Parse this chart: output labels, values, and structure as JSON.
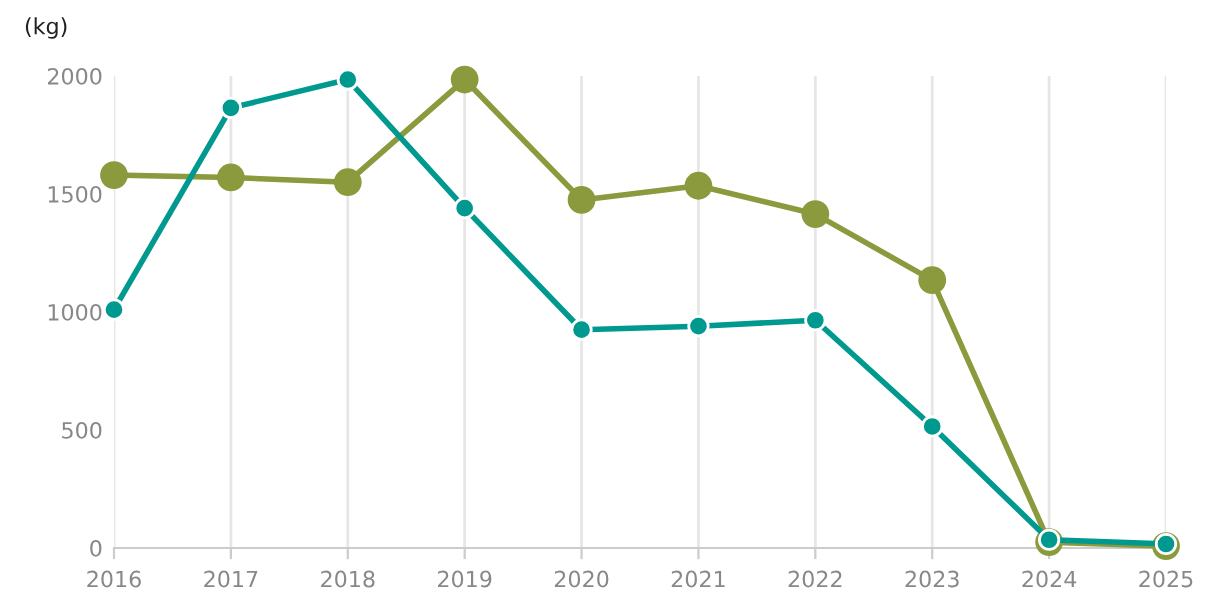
{
  "chart_data": {
    "type": "line",
    "ylabel": "(kg)",
    "x": [
      2016,
      2017,
      2018,
      2019,
      2020,
      2021,
      2022,
      2023,
      2024,
      2025
    ],
    "series": [
      {
        "color": "#8a9a3c",
        "values": [
          1580,
          1570,
          1550,
          1985,
          1475,
          1535,
          1415,
          1135,
          25,
          8
        ]
      },
      {
        "color": "#00998f",
        "values": [
          1010,
          1865,
          1985,
          1440,
          925,
          940,
          965,
          515,
          35,
          17
        ]
      }
    ],
    "xlim": [
      2016,
      2025
    ],
    "xticks": [
      2016,
      2017,
      2018,
      2019,
      2020,
      2021,
      2022,
      2023,
      2024,
      2025
    ],
    "ylim": [
      0,
      2000
    ],
    "yticks": [
      0,
      500,
      1000,
      1500,
      2000
    ],
    "grid": "x",
    "marker": "circle",
    "line_style": "solid",
    "legend": false
  }
}
